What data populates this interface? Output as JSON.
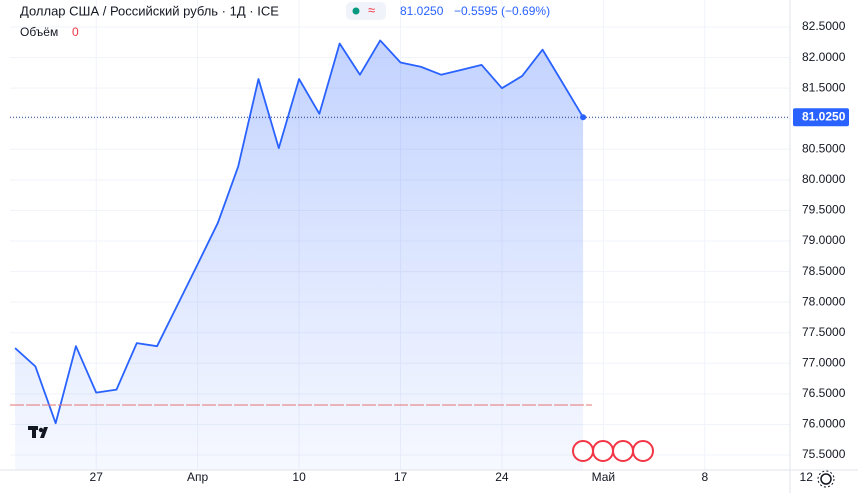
{
  "chart_data": {
    "type": "area",
    "title": "Доллар США / Российский рубль · 1Д · ICE",
    "last_price": "81.0250",
    "change": "−0.5595 (−0.69%)",
    "volume_label": "Объём",
    "volume_value": "0",
    "color": "#2962ff",
    "values": [
      77.25,
      76.95,
      76.02,
      77.28,
      76.52,
      76.57,
      77.33,
      77.28,
      77.95,
      78.62,
      79.3,
      80.22,
      81.65,
      80.52,
      81.65,
      81.08,
      82.23,
      81.72,
      82.28,
      81.92,
      81.85,
      81.72,
      81.8,
      81.88,
      81.5,
      81.7,
      82.13,
      81.58,
      81.025
    ],
    "xlim": [
      -0.25,
      38.2
    ],
    "xticks": [
      {
        "value": 4,
        "label": "27"
      },
      {
        "value": 9,
        "label": "Апр"
      },
      {
        "value": 14,
        "label": "10"
      },
      {
        "value": 19,
        "label": "17"
      },
      {
        "value": 24,
        "label": "24"
      },
      {
        "value": 29,
        "label": "Май"
      },
      {
        "value": 34,
        "label": "8"
      },
      {
        "value": 39,
        "label": "12"
      }
    ],
    "ylim": [
      75.255,
      82.942
    ],
    "yticks": [
      {
        "value": 75.5,
        "label": "75.5000"
      },
      {
        "value": 76,
        "label": "76.0000"
      },
      {
        "value": 76.5,
        "label": "76.5000"
      },
      {
        "value": 77,
        "label": "77.0000"
      },
      {
        "value": 77.5,
        "label": "77.5000"
      },
      {
        "value": 78,
        "label": "78.0000"
      },
      {
        "value": 78.5,
        "label": "78.5000"
      },
      {
        "value": 79,
        "label": "79.0000"
      },
      {
        "value": 79.5,
        "label": "79.5000"
      },
      {
        "value": 80,
        "label": "80.0000"
      },
      {
        "value": 80.5,
        "label": "80.5000"
      },
      {
        "value": 81,
        "label": "81.0000"
      },
      {
        "value": 81.5,
        "label": "81.5000"
      },
      {
        "value": 82,
        "label": "82.0000"
      },
      {
        "value": 82.5,
        "label": "82.5000"
      }
    ],
    "grid": true
  }
}
